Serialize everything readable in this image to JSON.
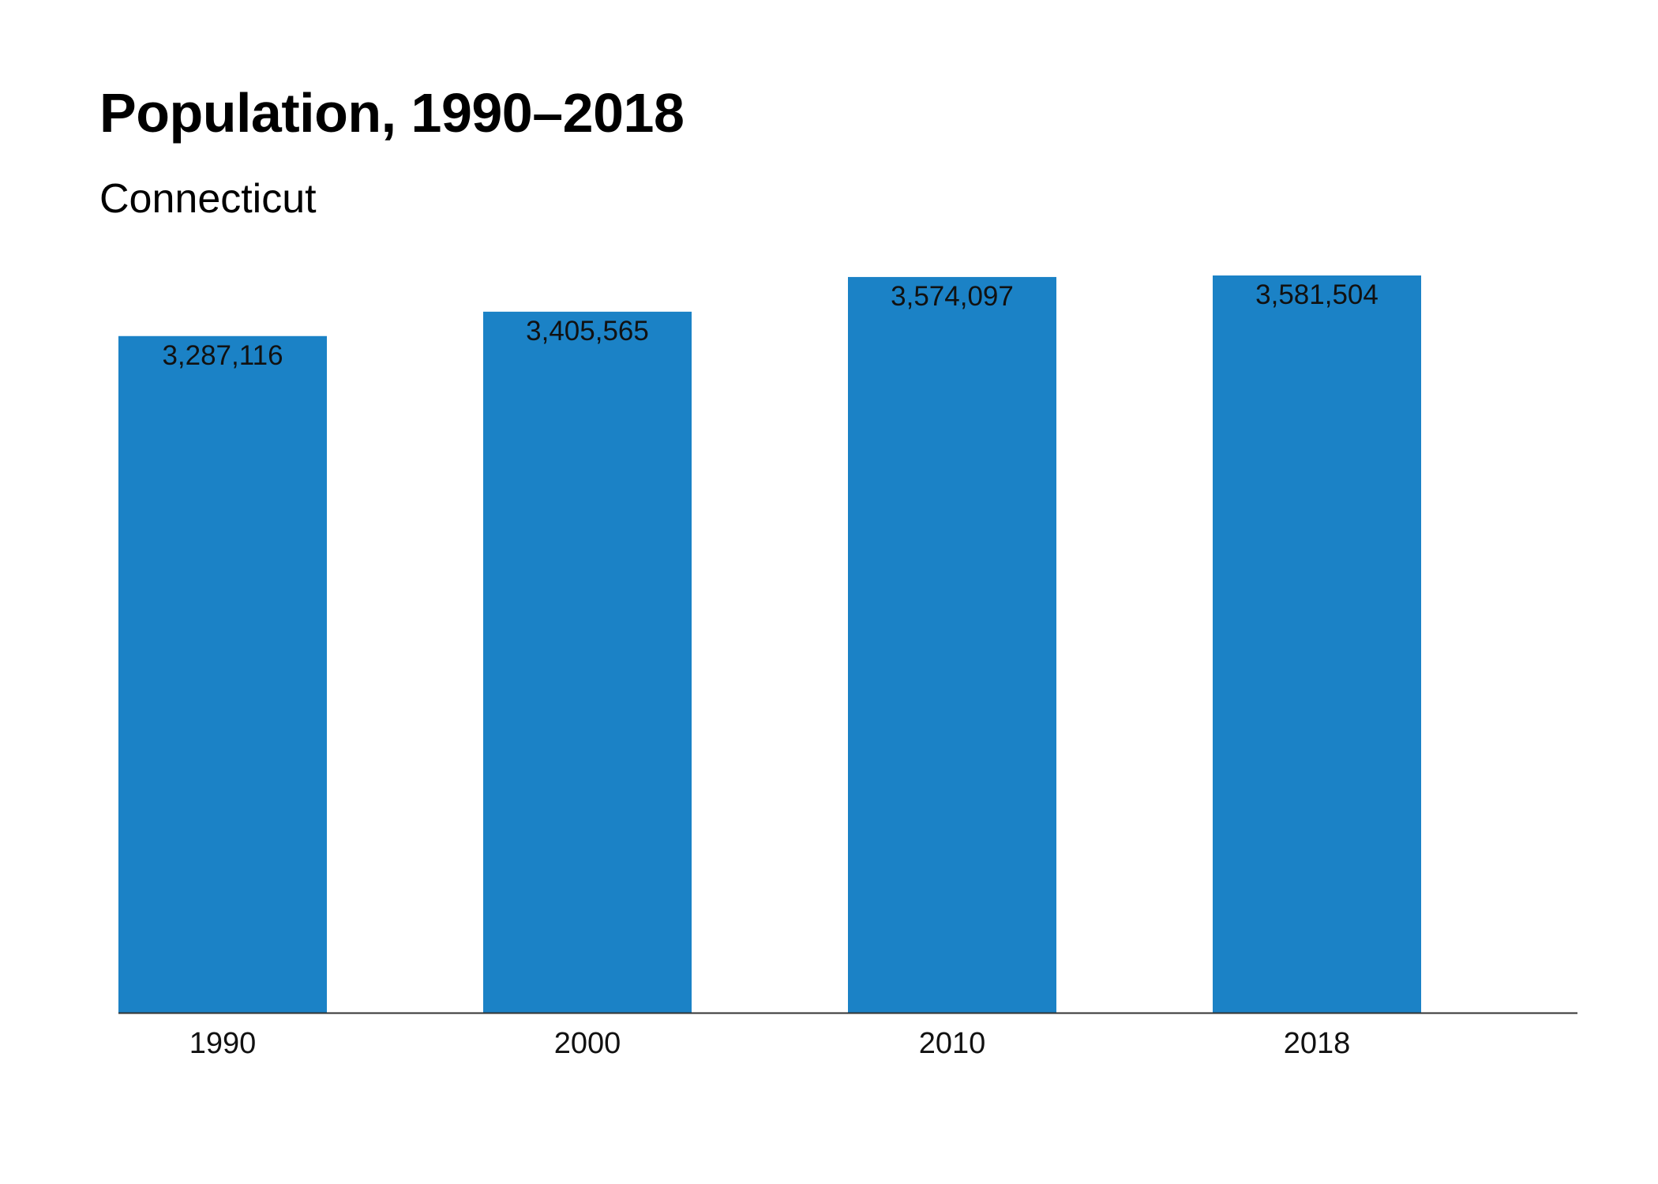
{
  "title": "Population, 1990–2018",
  "subtitle": "Connecticut",
  "colors": {
    "bar": "#1B82C6",
    "axis": "#333333",
    "text": "#111111"
  },
  "chart_data": {
    "type": "bar",
    "title": "Population, 1990–2018",
    "subtitle": "Connecticut",
    "categories": [
      "1990",
      "2000",
      "2010",
      "2018"
    ],
    "values": [
      3287116,
      3405565,
      3574097,
      3581504
    ],
    "value_labels": [
      "3,287,116",
      "3,405,565",
      "3,574,097",
      "3,581,504"
    ],
    "xlabel": "",
    "ylabel": "",
    "ylim": [
      0,
      3581504
    ],
    "grid": false,
    "legend": "none",
    "bar_color": "#1B82C6"
  }
}
